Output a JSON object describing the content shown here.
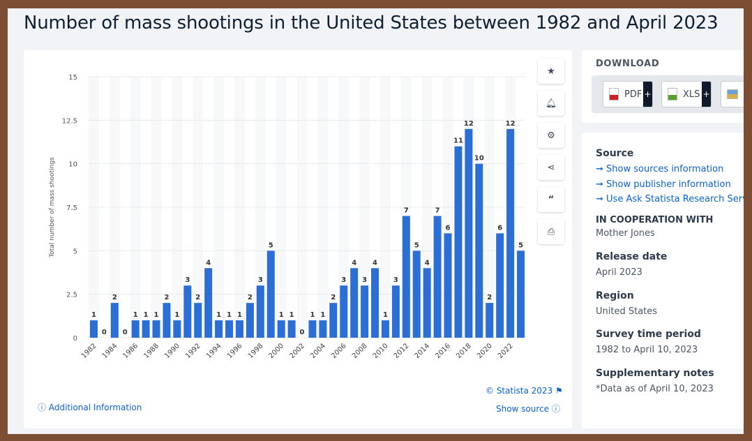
{
  "title": "Number of mass shootings in the United States between 1982 and April 2023",
  "chart_data": {
    "type": "bar",
    "title": "",
    "xlabel": "",
    "ylabel": "Total number of mass shootings",
    "ylim": [
      0,
      15
    ],
    "yticks": [
      "0",
      "2.5",
      "5",
      "7.5",
      "10",
      "12.5",
      "15"
    ],
    "grid": true,
    "color": "#2b6fd6",
    "categories": [
      "1982",
      "1983",
      "1984",
      "1985",
      "1986",
      "1987",
      "1988",
      "1989",
      "1990",
      "1991",
      "1992",
      "1993",
      "1994",
      "1995",
      "1996",
      "1997",
      "1998",
      "1999",
      "2000",
      "2001",
      "2002",
      "2003",
      "2004",
      "2005",
      "2006",
      "2007",
      "2008",
      "2009",
      "2010",
      "2011",
      "2012",
      "2013",
      "2014",
      "2015",
      "2016",
      "2017",
      "2018",
      "2019",
      "2020",
      "2021",
      "2022",
      "2023"
    ],
    "values": [
      1,
      0,
      2,
      0,
      1,
      1,
      1,
      2,
      1,
      3,
      2,
      4,
      1,
      1,
      1,
      2,
      3,
      5,
      1,
      1,
      0,
      1,
      1,
      2,
      3,
      4,
      3,
      4,
      1,
      3,
      7,
      5,
      4,
      7,
      6,
      11,
      12,
      10,
      2,
      6,
      12,
      5
    ]
  },
  "tools": {
    "star": "star-icon",
    "bell": "bell-icon",
    "gear": "gear-icon",
    "share": "share-icon",
    "quote": "quote-icon",
    "print": "print-icon"
  },
  "footer": {
    "copyright": "© Statista 2023",
    "additional": "Additional Information",
    "show_source": "Show source"
  },
  "download": {
    "heading": "DOWNLOAD",
    "pdf": "PDF",
    "xls": "XLS",
    "png": "P",
    "plus": "+"
  },
  "info": {
    "source_heading": "Source",
    "links": [
      "Show sources information",
      "Show publisher information",
      "Use Ask Statista Research Service"
    ],
    "coop_heading": "IN COOPERATION WITH",
    "coop": "Mother Jones",
    "release_heading": "Release date",
    "release": "April 2023",
    "region_heading": "Region",
    "region": "United States",
    "survey_heading": "Survey time period",
    "survey": "1982 to April 10, 2023",
    "notes_heading": "Supplementary notes",
    "notes": "*Data as of April 10, 2023"
  }
}
